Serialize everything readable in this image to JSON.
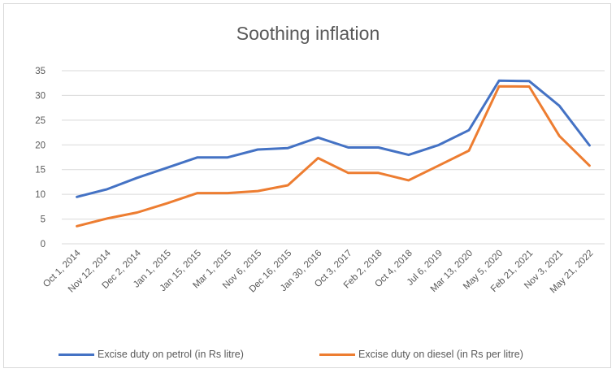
{
  "chart_data": {
    "type": "line",
    "title": "Soothing inflation",
    "categories": [
      "Oct 1, 2014",
      "Nov 12, 2014",
      "Dec 2, 2014",
      "Jan 1, 2015",
      "Jan 15, 2015",
      "Mar 1, 2015",
      "Nov 6, 2015",
      "Dec 16, 2015",
      "Jan 30, 2016",
      "Oct 3, 2017",
      "Feb 2, 2018",
      "Oct 4, 2018",
      "Jul 6, 2019",
      "Mar 13, 2020",
      "May 5, 2020",
      "Feb 21, 2021",
      "Nov 3, 2021",
      "May 21, 2022"
    ],
    "series": [
      {
        "name": "Excise duty on petrol (in Rs litre)",
        "color": "#4472c4",
        "values": [
          9.48,
          11.02,
          13.34,
          15.4,
          17.46,
          17.46,
          19.06,
          19.36,
          21.48,
          19.48,
          19.48,
          17.98,
          19.98,
          22.98,
          32.98,
          32.9,
          27.9,
          19.9
        ]
      },
      {
        "name": "Excise duty on diesel (in Rs per litre)",
        "color": "#ed7d31",
        "values": [
          3.56,
          5.11,
          6.33,
          8.2,
          10.26,
          10.26,
          10.66,
          11.83,
          17.33,
          14.33,
          14.33,
          12.83,
          15.83,
          18.83,
          31.83,
          31.8,
          21.8,
          15.8
        ]
      }
    ],
    "ylim": [
      0,
      35
    ],
    "yticks": [
      "0",
      "5",
      "10",
      "15",
      "20",
      "25",
      "30",
      "35"
    ],
    "grid": true,
    "legend": "bottom"
  }
}
